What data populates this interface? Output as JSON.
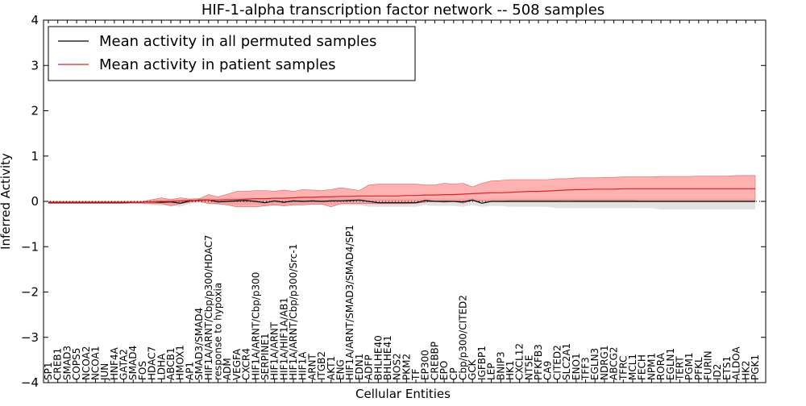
{
  "chart_data": {
    "type": "line",
    "title": "HIF-1-alpha transcription factor network -- 508 samples",
    "xlabel": "Cellular Entities",
    "ylabel": "Inferred Activity",
    "ylim": [
      -4,
      4
    ],
    "yticks": [
      -4,
      -3,
      -2,
      -1,
      0,
      1,
      2,
      3,
      4
    ],
    "ytick_labels": [
      "−4",
      "−3",
      "−2",
      "−1",
      "0",
      "1",
      "2",
      "3",
      "4"
    ],
    "legend": {
      "location": "top-left",
      "entries": [
        {
          "label": "Mean activity in all permuted samples",
          "color": "#000000"
        },
        {
          "label": "Mean activity in patient samples",
          "color": "#d62728"
        }
      ]
    },
    "categories": [
      "SP1",
      "CREB1",
      "SMAD3",
      "COPS5",
      "NCOA2",
      "NCOA1",
      "JUN",
      "HNF4A",
      "GATA2",
      "SMAD4",
      "FOS",
      "HDAC7",
      "LDHA",
      "ABCB1",
      "HMOX1",
      "AP1",
      "SMAD3/SMAD4",
      "HIF1A/ARNT/Cbp/p300/HDAC7",
      "response to hypoxia",
      "ADM",
      "VEGFA",
      "CXCR4",
      "HIF1A/ARNT/Cbp/p300",
      "SERPINE1",
      "HIF1A/ARNT",
      "HIF1A/HIF1A/AB1",
      "HIF1A/ARNT/Cbp/p300/Src-1",
      "HIF1A",
      "ARNT",
      "ITGB2",
      "AKT1",
      "ENG",
      "HIF1A/ARNT/SMAD3/SMAD4/SP1",
      "EDN1",
      "ADFP",
      "BHLHE40",
      "BHLHE41",
      "NOS2",
      "PKM2",
      "TF",
      "EP300",
      "CREBBP",
      "EPO",
      "CP",
      "Cbp/p300/CITED2",
      "GCK",
      "IGFBP1",
      "LEP",
      "BNIP3",
      "HK1",
      "CXCL12",
      "NT5E",
      "PFKFB3",
      "CA9",
      "CITED2",
      "SLC2A1",
      "ENO1",
      "TFF3",
      "EGLN3",
      "NDRG1",
      "ABCG2",
      "TFRC",
      "MCL1",
      "FECH",
      "NPM1",
      "RORA",
      "EGLN1",
      "TERT",
      "PGM1",
      "PFKL",
      "FURIN",
      "ID2",
      "ETS1",
      "ALDOA",
      "HK2",
      "PGK1"
    ],
    "series": [
      {
        "name": "Mean activity in all permuted samples",
        "color": "#000000",
        "values": [
          -0.03,
          -0.03,
          -0.03,
          -0.03,
          -0.03,
          -0.03,
          -0.03,
          -0.03,
          -0.03,
          -0.02,
          -0.02,
          -0.01,
          -0.02,
          -0.01,
          -0.04,
          0.01,
          0.03,
          0.03,
          -0.01,
          0.0,
          0.01,
          0.02,
          0.0,
          -0.03,
          0.01,
          -0.02,
          0.01,
          0.0,
          0.01,
          0.0,
          0.01,
          0.01,
          0.02,
          0.03,
          0.0,
          -0.03,
          -0.03,
          -0.03,
          -0.03,
          -0.03,
          0.02,
          0.0,
          0.0,
          0.0,
          -0.01,
          0.03,
          -0.04,
          0.0,
          0.0,
          0.0,
          0.0,
          0.0,
          0.0,
          0.0,
          0.0,
          0.0,
          0.0,
          0.0,
          0.0,
          0.0,
          0.0,
          0.0,
          0.0,
          0.0,
          0.0,
          0.0,
          0.0,
          0.0,
          0.0,
          0.0,
          0.0,
          0.0,
          0.0,
          0.0,
          0.0,
          0.0
        ]
      },
      {
        "name": "Mean activity in patient samples",
        "color": "#d62728",
        "values": [
          -0.02,
          -0.02,
          -0.02,
          -0.02,
          -0.02,
          -0.02,
          -0.02,
          -0.02,
          -0.02,
          -0.02,
          -0.02,
          -0.01,
          0.0,
          0.0,
          0.01,
          0.02,
          0.02,
          0.03,
          0.03,
          0.04,
          0.04,
          0.05,
          0.06,
          0.06,
          0.07,
          0.07,
          0.08,
          0.09,
          0.09,
          0.1,
          0.1,
          0.11,
          0.11,
          0.12,
          0.12,
          0.12,
          0.12,
          0.12,
          0.13,
          0.13,
          0.14,
          0.14,
          0.15,
          0.15,
          0.16,
          0.17,
          0.18,
          0.19,
          0.19,
          0.2,
          0.21,
          0.22,
          0.22,
          0.23,
          0.24,
          0.25,
          0.26,
          0.26,
          0.27,
          0.27,
          0.27,
          0.28,
          0.28,
          0.28,
          0.28,
          0.28,
          0.28,
          0.28,
          0.28,
          0.28,
          0.28,
          0.28,
          0.28,
          0.28,
          0.28,
          0.28
        ]
      }
    ],
    "bands": [
      {
        "name": "Permuted samples spread",
        "color": "#bfbfbf",
        "lower": [
          -0.05,
          -0.05,
          -0.05,
          -0.05,
          -0.05,
          -0.05,
          -0.05,
          -0.05,
          -0.05,
          -0.05,
          -0.05,
          -0.08,
          -0.1,
          -0.08,
          -0.12,
          -0.05,
          -0.02,
          -0.05,
          -0.08,
          -0.08,
          -0.08,
          -0.08,
          -0.08,
          -0.1,
          -0.08,
          -0.1,
          -0.08,
          -0.08,
          -0.08,
          -0.08,
          -0.08,
          -0.08,
          -0.08,
          -0.08,
          -0.12,
          -0.12,
          -0.12,
          -0.12,
          -0.12,
          -0.12,
          -0.08,
          -0.1,
          -0.1,
          -0.1,
          -0.12,
          -0.08,
          -0.12,
          -0.1,
          -0.1,
          -0.12,
          -0.12,
          -0.12,
          -0.12,
          -0.12,
          -0.15,
          -0.15,
          -0.15,
          -0.15,
          -0.15,
          -0.15,
          -0.15,
          -0.15,
          -0.15,
          -0.15,
          -0.15,
          -0.18,
          -0.18,
          -0.18,
          -0.18,
          -0.18,
          -0.18,
          -0.18,
          -0.18,
          -0.18,
          -0.18,
          -0.18
        ],
        "upper": [
          0.0,
          0.0,
          0.0,
          0.0,
          0.0,
          0.0,
          0.0,
          0.0,
          0.0,
          0.0,
          0.0,
          0.04,
          0.05,
          0.05,
          0.04,
          0.06,
          0.06,
          0.08,
          0.06,
          0.08,
          0.08,
          0.08,
          0.08,
          0.06,
          0.08,
          0.06,
          0.08,
          0.08,
          0.08,
          0.08,
          0.08,
          0.08,
          0.08,
          0.1,
          0.08,
          0.06,
          0.06,
          0.06,
          0.06,
          0.06,
          0.08,
          0.06,
          0.06,
          0.06,
          0.06,
          0.08,
          0.04,
          0.06,
          0.06,
          0.06,
          0.06,
          0.06,
          0.06,
          0.06,
          0.06,
          0.06,
          0.06,
          0.06,
          0.06,
          0.06,
          0.06,
          0.06,
          0.06,
          0.06,
          0.06,
          0.06,
          0.06,
          0.06,
          0.06,
          0.06,
          0.06,
          0.06,
          0.06,
          0.06,
          0.06,
          0.06
        ]
      },
      {
        "name": "Patient samples spread",
        "color": "#ff6666",
        "lower": [
          -0.04,
          -0.04,
          -0.04,
          -0.04,
          -0.04,
          -0.04,
          -0.04,
          -0.04,
          -0.04,
          -0.04,
          -0.04,
          -0.05,
          -0.05,
          -0.1,
          -0.05,
          -0.02,
          0.0,
          -0.05,
          -0.05,
          -0.08,
          -0.12,
          -0.12,
          -0.12,
          -0.1,
          -0.08,
          -0.1,
          -0.08,
          -0.08,
          -0.06,
          -0.06,
          -0.12,
          -0.05,
          -0.05,
          -0.05,
          -0.05,
          -0.05,
          -0.05,
          -0.05,
          -0.05,
          -0.04,
          -0.02,
          0.0,
          -0.02,
          0.0,
          -0.04,
          0.02,
          0.0,
          0.0,
          0.0,
          0.02,
          0.02,
          0.02,
          0.02,
          0.02,
          0.02,
          0.03,
          0.02,
          0.02,
          0.02,
          0.02,
          0.02,
          0.02,
          0.02,
          0.0,
          0.0,
          0.0,
          0.0,
          0.0,
          0.0,
          0.0,
          0.0,
          0.0,
          0.0,
          0.0,
          0.0,
          0.0
        ],
        "upper": [
          0.0,
          0.0,
          0.0,
          0.0,
          0.0,
          0.0,
          0.0,
          0.0,
          0.0,
          0.0,
          0.0,
          0.04,
          0.08,
          0.04,
          0.08,
          0.05,
          0.06,
          0.15,
          0.1,
          0.16,
          0.22,
          0.22,
          0.24,
          0.24,
          0.22,
          0.25,
          0.22,
          0.26,
          0.25,
          0.24,
          0.26,
          0.3,
          0.27,
          0.24,
          0.36,
          0.38,
          0.38,
          0.38,
          0.38,
          0.38,
          0.36,
          0.36,
          0.4,
          0.38,
          0.4,
          0.32,
          0.4,
          0.45,
          0.46,
          0.48,
          0.48,
          0.48,
          0.48,
          0.48,
          0.5,
          0.5,
          0.52,
          0.52,
          0.52,
          0.53,
          0.53,
          0.54,
          0.54,
          0.54,
          0.54,
          0.55,
          0.55,
          0.55,
          0.55,
          0.56,
          0.56,
          0.56,
          0.56,
          0.57,
          0.57,
          0.57
        ]
      }
    ],
    "reference_line": {
      "y": 0,
      "style": "dotted",
      "color": "#000000"
    }
  }
}
